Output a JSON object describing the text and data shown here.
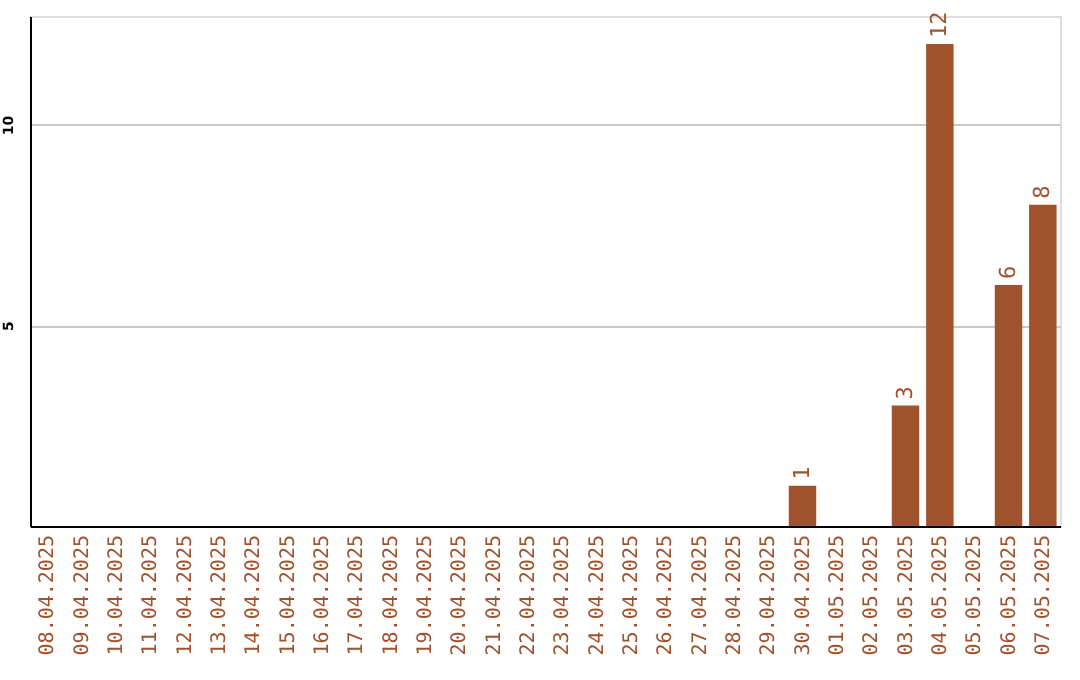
{
  "chart_data": {
    "type": "bar",
    "categories": [
      "08.04.2025",
      "09.04.2025",
      "10.04.2025",
      "11.04.2025",
      "12.04.2025",
      "13.04.2025",
      "14.04.2025",
      "15.04.2025",
      "16.04.2025",
      "17.04.2025",
      "18.04.2025",
      "19.04.2025",
      "20.04.2025",
      "21.04.2025",
      "22.04.2025",
      "23.04.2025",
      "24.04.2025",
      "25.04.2025",
      "26.04.2025",
      "27.04.2025",
      "28.04.2025",
      "29.04.2025",
      "30.04.2025",
      "01.05.2025",
      "02.05.2025",
      "03.05.2025",
      "04.05.2025",
      "05.05.2025",
      "06.05.2025",
      "07.05.2025"
    ],
    "values": [
      0,
      0,
      0,
      0,
      0,
      0,
      0,
      0,
      0,
      0,
      0,
      0,
      0,
      0,
      0,
      0,
      0,
      0,
      0,
      0,
      0,
      0,
      1,
      0,
      0,
      3,
      12,
      0,
      6,
      8
    ],
    "value_labels": [
      null,
      null,
      null,
      null,
      null,
      null,
      null,
      null,
      null,
      null,
      null,
      null,
      null,
      null,
      null,
      null,
      null,
      null,
      null,
      null,
      null,
      null,
      "1",
      null,
      null,
      "3",
      "12",
      null,
      "6",
      "8"
    ],
    "color": "#a0522d",
    "ylim": [
      0,
      12.7
    ],
    "yticks": [
      5,
      10
    ],
    "grid": "y"
  }
}
